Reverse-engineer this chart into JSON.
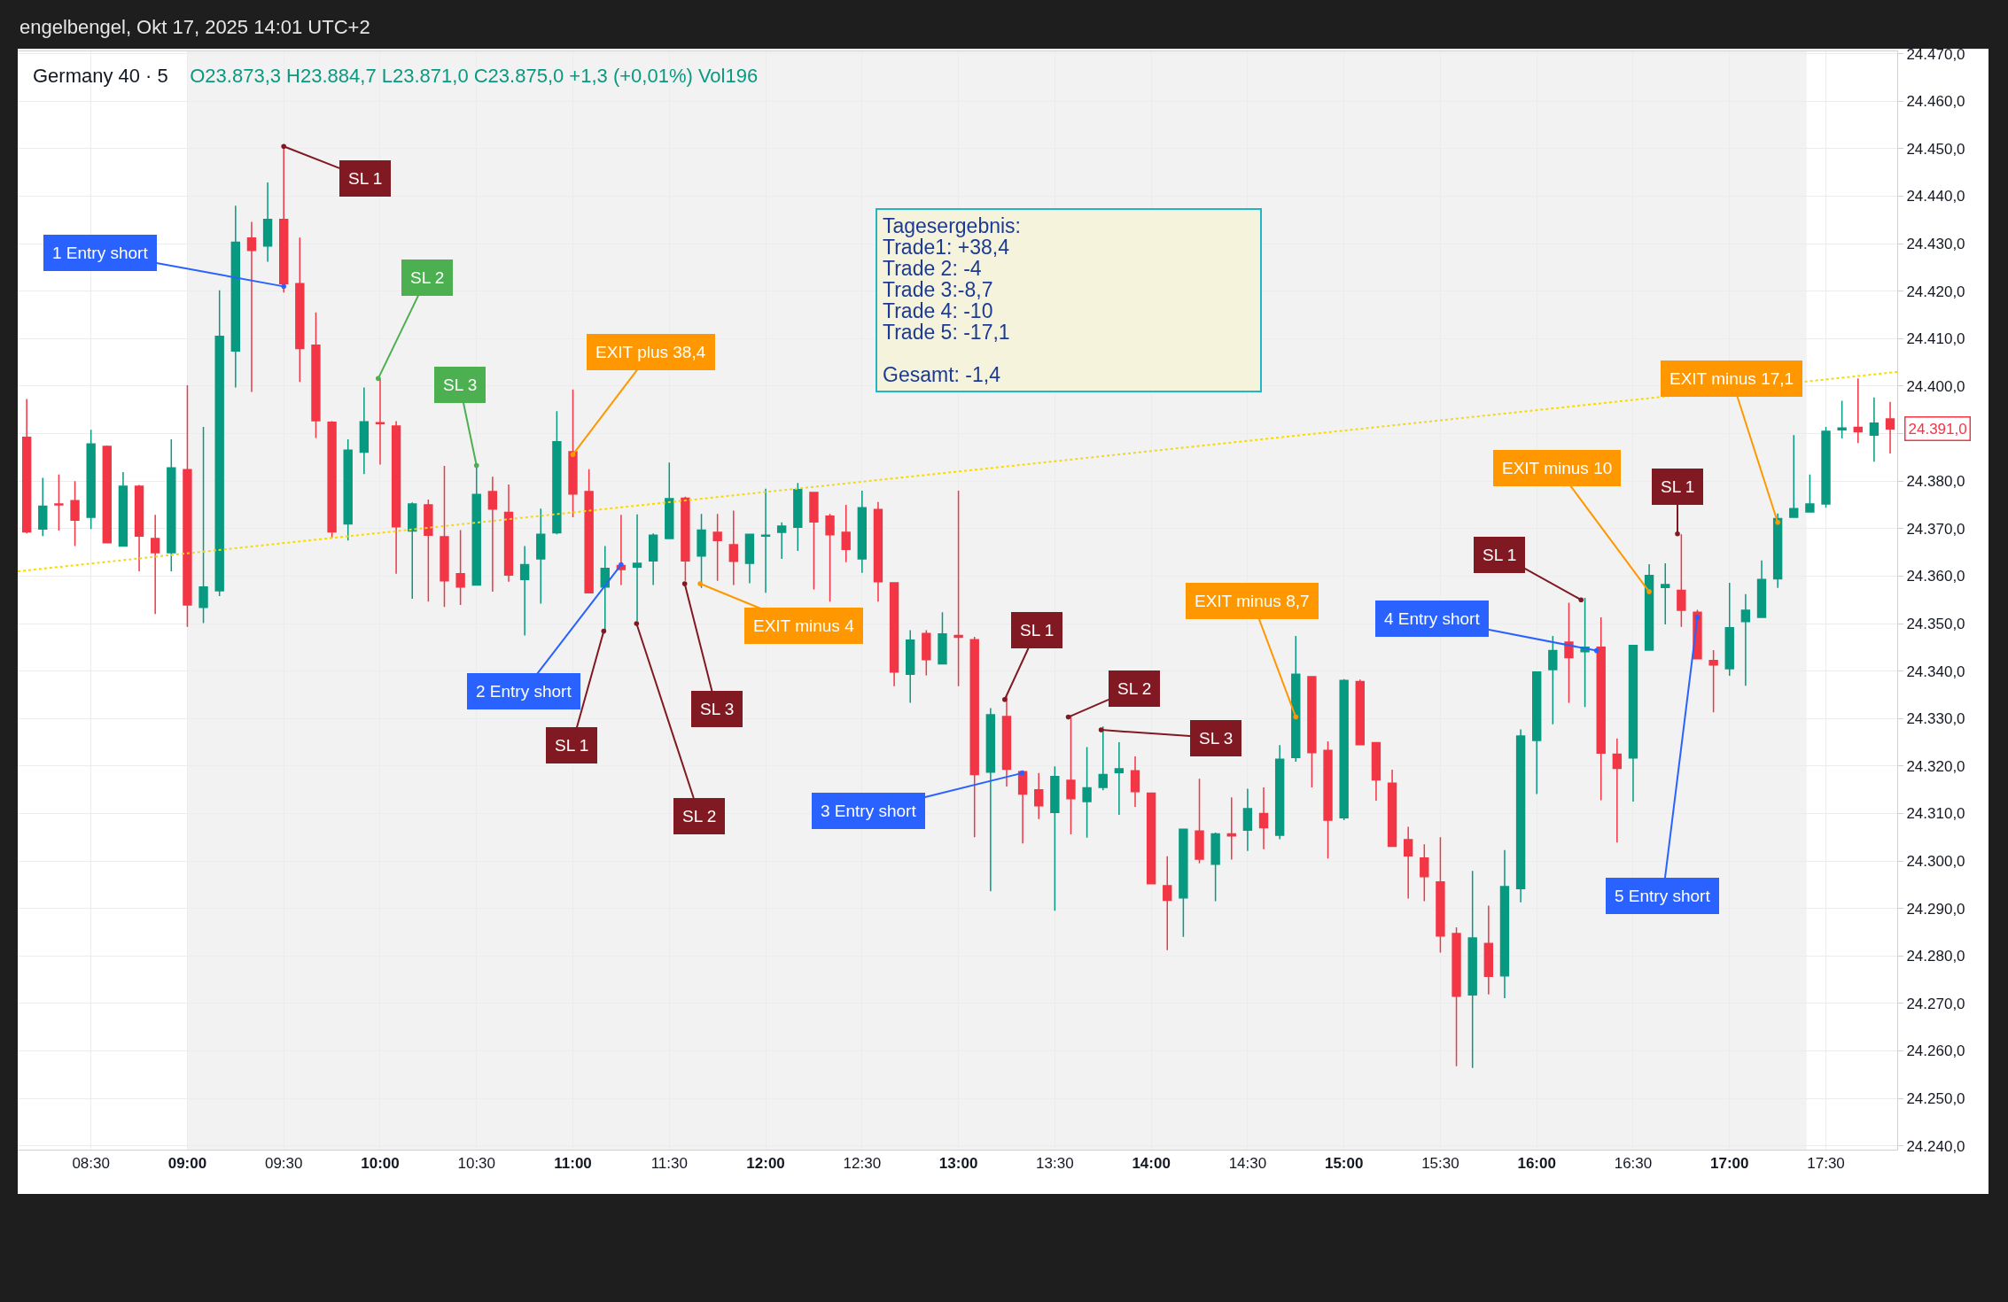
{
  "chart_data": {
    "type": "candlestick",
    "title": "Germany 40 · 5",
    "subtitle": "O23.873,3 H23.884,7 L23.871,0 C23.875,0 +1,3 (+0,01%) Vol196",
    "x": [
      8.1667,
      8.25,
      8.3333,
      8.4167,
      8.5,
      8.5833,
      8.6667,
      8.75,
      8.8333,
      8.9167,
      9,
      9.0833,
      9.1667,
      9.25,
      9.3333,
      9.4167,
      9.5,
      9.5833,
      9.6667,
      9.75,
      9.8333,
      9.9167,
      10,
      10.0833,
      10.1667,
      10.25,
      10.3333,
      10.4167,
      10.5,
      10.5833,
      10.6667,
      10.75,
      10.8333,
      10.9167,
      11,
      11.0833,
      11.1667,
      11.25,
      11.3333,
      11.4167,
      11.5,
      11.5833,
      11.6667,
      11.75,
      11.8333,
      11.9167,
      12,
      12.0833,
      12.1667,
      12.25,
      12.3333,
      12.4167,
      12.5,
      12.5833,
      12.6667,
      12.75,
      12.8333,
      12.9167,
      13,
      13.0833,
      13.1667,
      13.25,
      13.3333,
      13.4167,
      13.5,
      13.5833,
      13.6667,
      13.75,
      13.8333,
      13.9167,
      14,
      14.0833,
      14.1667,
      14.25,
      14.3333,
      14.4167,
      14.5,
      14.5833,
      14.6667,
      14.75,
      14.8333,
      14.9167,
      15,
      15.0833,
      15.1667,
      15.25,
      15.3333,
      15.4167,
      15.5,
      15.5833,
      15.6667,
      15.75,
      15.8333,
      15.9167,
      16,
      16.0833,
      16.1667,
      16.25,
      16.3333,
      16.4167,
      16.5,
      16.5833,
      16.6667,
      16.75,
      16.8333,
      16.9167,
      17,
      17.0833,
      17.1667,
      17.25,
      17.3333,
      17.4167,
      17.5,
      17.5833,
      17.6667,
      17.75,
      17.8333
    ],
    "ohlc": [
      [
        24389.2,
        24397.3,
        24369,
        24369.3
      ],
      [
        24369.9,
        24380.7,
        24368.4,
        24374.7
      ],
      [
        24375.2,
        24381.4,
        24369.6,
        24375
      ],
      [
        24375.9,
        24380,
        24366.3,
        24371.8
      ],
      [
        24372.4,
        24390.8,
        24369.9,
        24387.8
      ],
      [
        24387.3,
        24387.5,
        24367,
        24367
      ],
      [
        24366.3,
        24381.9,
        24366.3,
        24378.9
      ],
      [
        24378.9,
        24379.2,
        24361,
        24368.4
      ],
      [
        24367.9,
        24372.9,
        24352,
        24364.9
      ],
      [
        24364.9,
        24388.8,
        24361,
        24382.8
      ],
      [
        24382.4,
        24400.2,
        24349.3,
        24353.9
      ],
      [
        24353.4,
        24391.4,
        24350.1,
        24357.7
      ],
      [
        24356.9,
        24420.2,
        24355.8,
        24410.5
      ],
      [
        24407.4,
        24438,
        24399.7,
        24430.3
      ],
      [
        24431.2,
        24434.6,
        24398.8,
        24428.6
      ],
      [
        24429.5,
        24442.9,
        24426.2,
        24435.1
      ],
      [
        24435.1,
        24450.5,
        24419.7,
        24421.6
      ],
      [
        24421.6,
        24431.3,
        24400.9,
        24407.9
      ],
      [
        24408.6,
        24415.5,
        24389.1,
        24392.7
      ],
      [
        24392.4,
        24392.6,
        24368,
        24369.3
      ],
      [
        24371,
        24388.8,
        24367.5,
        24386.5
      ],
      [
        24386.1,
        24399.7,
        24381.5,
        24392.5
      ],
      [
        24392.3,
        24401.6,
        24383.5,
        24392.1
      ],
      [
        24391.6,
        24392.6,
        24360.5,
        24370.4
      ],
      [
        24369.5,
        24375.5,
        24355.2,
        24375.2
      ],
      [
        24375,
        24376.1,
        24354.6,
        24368.6
      ],
      [
        24368.3,
        24383.2,
        24353.5,
        24359
      ],
      [
        24360.5,
        24369.7,
        24353.9,
        24357.7
      ],
      [
        24358.1,
        24383.3,
        24358.1,
        24377.2
      ],
      [
        24377.8,
        24380.9,
        24356.7,
        24374.1
      ],
      [
        24373.4,
        24379.3,
        24358.8,
        24360.2
      ],
      [
        24359.3,
        24366.3,
        24347.5,
        24362.4
      ],
      [
        24363.6,
        24374.2,
        24354.2,
        24368.8
      ],
      [
        24369.1,
        24394.7,
        24368.8,
        24388.3
      ],
      [
        24386.2,
        24399.3,
        24372.4,
        24377.3
      ],
      [
        24377.8,
        24382.5,
        24356.5,
        24356.5
      ],
      [
        24357.7,
        24366.3,
        24348.6,
        24361.6
      ],
      [
        24362.2,
        24372.9,
        24358.1,
        24361.4
      ],
      [
        24361.9,
        24373,
        24350.5,
        24362.7
      ],
      [
        24363.2,
        24369,
        24358.1,
        24368.6
      ],
      [
        24367.9,
        24383.9,
        24367.9,
        24376.3
      ],
      [
        24376.4,
        24376.7,
        24359,
        24363.2
      ],
      [
        24364.2,
        24373.1,
        24357.5,
        24369.7
      ],
      [
        24369.2,
        24373.1,
        24359,
        24367.5
      ],
      [
        24366.6,
        24373.8,
        24358.1,
        24363.1
      ],
      [
        24362.7,
        24368.8,
        24358.5,
        24368.8
      ],
      [
        24368.4,
        24378.4,
        24356.5,
        24368.6
      ],
      [
        24369.2,
        24371.3,
        24363.6,
        24370.5
      ],
      [
        24370.3,
        24379.6,
        24365.3,
        24378.2
      ],
      [
        24377.6,
        24377.6,
        24357.2,
        24371.4
      ],
      [
        24372.6,
        24373.1,
        24354.6,
        24368.7
      ],
      [
        24369.2,
        24375,
        24362.9,
        24365.6
      ],
      [
        24363.6,
        24378,
        24360.7,
        24374.4
      ],
      [
        24374,
        24375.6,
        24354.6,
        24358.8
      ],
      [
        24358.6,
        24358.6,
        24336.8,
        24339.8
      ],
      [
        24339.3,
        24348.6,
        24333.3,
        24346.5
      ],
      [
        24347.9,
        24348.6,
        24339.1,
        24342.4
      ],
      [
        24341.5,
        24352.4,
        24341.5,
        24347.8
      ],
      [
        24347.5,
        24378,
        24336.8,
        24347.1
      ],
      [
        24346.6,
        24347.2,
        24305,
        24318.2
      ],
      [
        24318.7,
        24332.2,
        24293.6,
        24330.8
      ],
      [
        24330.4,
        24334.6,
        24315.7,
        24319.3
      ],
      [
        24318.8,
        24319.1,
        24303.7,
        24314.1
      ],
      [
        24315,
        24318.5,
        24308.8,
        24311.6
      ],
      [
        24310.2,
        24319.9,
        24289.5,
        24317.8
      ],
      [
        24317,
        24330.7,
        24305.6,
        24313.1
      ],
      [
        24312.5,
        24324,
        24304.9,
        24315.4
      ],
      [
        24315.5,
        24328.3,
        24314.9,
        24318.2
      ],
      [
        24318.6,
        24325,
        24309.7,
        24319.4
      ],
      [
        24319,
        24322,
        24311.4,
        24314.6
      ],
      [
        24314.3,
        24314.3,
        24295.2,
        24295.2
      ],
      [
        24294.8,
        24301,
        24281.2,
        24291.7
      ],
      [
        24292.2,
        24306.7,
        24284,
        24306.7
      ],
      [
        24306.3,
        24317.3,
        24299.5,
        24300.4
      ],
      [
        24299.3,
        24306,
        24291.5,
        24305.7
      ],
      [
        24305.7,
        24313.4,
        24300.3,
        24305.3
      ],
      [
        24306.5,
        24315.2,
        24302.1,
        24311
      ],
      [
        24310,
        24315.5,
        24302.5,
        24307
      ],
      [
        24305.4,
        24324.4,
        24304.6,
        24321.4
      ],
      [
        24321.8,
        24347.4,
        24320.9,
        24339.3
      ],
      [
        24338.8,
        24338.8,
        24315.5,
        24322.8
      ],
      [
        24323.3,
        24325.2,
        24300.5,
        24308.6
      ],
      [
        24309.1,
        24338.3,
        24308.6,
        24338
      ],
      [
        24337.8,
        24338.2,
        24324.5,
        24324.5
      ],
      [
        24324.9,
        24324.9,
        24312.7,
        24317.1
      ],
      [
        24316.4,
        24319.2,
        24303.1,
        24303.1
      ],
      [
        24304.5,
        24307.2,
        24292.1,
        24301.1
      ],
      [
        24300.6,
        24303.5,
        24291.5,
        24296.7
      ],
      [
        24295.6,
        24305,
        24280.7,
        24284.2
      ],
      [
        24284.7,
        24286,
        24256.8,
        24271.5
      ],
      [
        24271.8,
        24297.9,
        24256.4,
        24283.8
      ],
      [
        24282.6,
        24290.6,
        24271.9,
        24275.7
      ],
      [
        24275.8,
        24302.3,
        24271.1,
        24294.6
      ],
      [
        24294.2,
        24327.7,
        24291.3,
        24326.3
      ],
      [
        24325.4,
        24339.8,
        24314.1,
        24339.8
      ],
      [
        24340.3,
        24347.4,
        24328.8,
        24344.3
      ],
      [
        24346.1,
        24354.4,
        24333.3,
        24342.8
      ],
      [
        24344.1,
        24355.4,
        24332.4,
        24345
      ],
      [
        24345,
        24351.3,
        24312.8,
        24322.7
      ],
      [
        24322.5,
        24325.8,
        24303.9,
        24319.5
      ],
      [
        24321.7,
        24345.4,
        24312.5,
        24345.4
      ],
      [
        24344.4,
        24362.5,
        24344.4,
        24360.1
      ],
      [
        24357.6,
        24362.7,
        24349.8,
        24358.2
      ],
      [
        24357,
        24368.8,
        24349.3,
        24352.8
      ],
      [
        24352.4,
        24352.9,
        24342.5,
        24342.6
      ],
      [
        24342.2,
        24344.4,
        24331.3,
        24341.3
      ],
      [
        24340.5,
        24358.6,
        24339,
        24349.1
      ],
      [
        24350.4,
        24356.2,
        24336.9,
        24352.8
      ],
      [
        24351.3,
        24363.3,
        24351.3,
        24359.3
      ],
      [
        24359.4,
        24373.2,
        24357.5,
        24372.1
      ],
      [
        24372.4,
        24389.7,
        24372.4,
        24374.2
      ],
      [
        24373.5,
        24381.4,
        24373.4,
        24375.2
      ],
      [
        24375.2,
        24391.4,
        24374.4,
        24390.5
      ],
      [
        24390.8,
        24396.9,
        24389,
        24391.2
      ],
      [
        24391.3,
        24401.6,
        24388,
        24390.4
      ],
      [
        24389.7,
        24397.6,
        24384.1,
        24392.2
      ],
      [
        24393.1,
        24396.7,
        24385.8,
        24391
      ]
    ],
    "colors": [
      "#f23645",
      "#089981",
      "#f23645",
      "#f23645",
      "#089981",
      "#f23645",
      "#089981",
      "#f23645",
      "#f23645",
      "#089981",
      "#f23645",
      "#089981",
      "#089981",
      "#089981",
      "#f23645",
      "#089981",
      "#f23645",
      "#f23645",
      "#f23645",
      "#f23645",
      "#089981",
      "#089981",
      "#f23645",
      "#f23645",
      "#089981",
      "#f23645",
      "#f23645",
      "#f23645",
      "#089981",
      "#f23645",
      "#f23645",
      "#089981",
      "#089981",
      "#089981",
      "#f23645",
      "#f23645",
      "#089981",
      "#f23645",
      "#089981",
      "#089981",
      "#089981",
      "#f23645",
      "#089981",
      "#f23645",
      "#f23645",
      "#089981",
      "#089981",
      "#089981",
      "#089981",
      "#f23645",
      "#f23645",
      "#f23645",
      "#089981",
      "#f23645",
      "#f23645",
      "#089981",
      "#f23645",
      "#089981",
      "#f23645",
      "#f23645",
      "#089981",
      "#f23645",
      "#f23645",
      "#f23645",
      "#089981",
      "#f23645",
      "#089981",
      "#089981",
      "#089981",
      "#f23645",
      "#f23645",
      "#f23645",
      "#089981",
      "#f23645",
      "#089981",
      "#f23645",
      "#089981",
      "#f23645",
      "#089981",
      "#089981",
      "#f23645",
      "#f23645",
      "#089981",
      "#f23645",
      "#f23645",
      "#f23645",
      "#f23645",
      "#f23645",
      "#f23645",
      "#f23645",
      "#089981",
      "#f23645",
      "#089981",
      "#089981",
      "#089981",
      "#089981",
      "#f23645",
      "#089981",
      "#f23645",
      "#f23645",
      "#089981",
      "#089981",
      "#089981",
      "#f23645",
      "#f23645",
      "#f23645",
      "#089981",
      "#089981",
      "#089981",
      "#089981",
      "#089981",
      "#089981",
      "#089981",
      "#089981",
      "#f23645",
      "#089981",
      "#f23645"
    ],
    "series": [
      {
        "type": "line",
        "x": [
          8.12,
          17.87
        ],
        "values": [
          24361,
          24403
        ],
        "color": "#f5d90a",
        "line_style": "dotted"
      }
    ],
    "bands": [
      {
        "axis": "x",
        "from": 9,
        "to": 17.4,
        "color": "#f2f2f2"
      }
    ],
    "xlim": [
      8.12,
      17.87
    ],
    "xticks": [
      {
        "value": 8.5,
        "label": "08:30"
      },
      {
        "value": 9,
        "label": "09:00"
      },
      {
        "value": 9.5,
        "label": "09:30"
      },
      {
        "value": 10,
        "label": "10:00"
      },
      {
        "value": 10.5,
        "label": "10:30"
      },
      {
        "value": 11,
        "label": "11:00"
      },
      {
        "value": 11.5,
        "label": "11:30"
      },
      {
        "value": 12,
        "label": "12:00"
      },
      {
        "value": 12.5,
        "label": "12:30"
      },
      {
        "value": 13,
        "label": "13:00"
      },
      {
        "value": 13.5,
        "label": "13:30"
      },
      {
        "value": 14,
        "label": "14:00"
      },
      {
        "value": 14.5,
        "label": "14:30"
      },
      {
        "value": 15,
        "label": "15:00"
      },
      {
        "value": 15.5,
        "label": "15:30"
      },
      {
        "value": 16,
        "label": "16:00"
      },
      {
        "value": 16.5,
        "label": "16:30"
      },
      {
        "value": 17,
        "label": "17:00"
      },
      {
        "value": 17.5,
        "label": "17:30"
      }
    ],
    "ylim": [
      24239.2,
      24470.5
    ],
    "yticks": [
      {
        "value": 24240,
        "label": "24.240,0"
      },
      {
        "value": 24250,
        "label": "24.250,0"
      },
      {
        "value": 24260,
        "label": "24.260,0"
      },
      {
        "value": 24270,
        "label": "24.270,0"
      },
      {
        "value": 24280,
        "label": "24.280,0"
      },
      {
        "value": 24290,
        "label": "24.290,0"
      },
      {
        "value": 24300,
        "label": "24.300,0"
      },
      {
        "value": 24310,
        "label": "24.310,0"
      },
      {
        "value": 24320,
        "label": "24.320,0"
      },
      {
        "value": 24330,
        "label": "24.330,0"
      },
      {
        "value": 24340,
        "label": "24.340,0"
      },
      {
        "value": 24350,
        "label": "24.350,0"
      },
      {
        "value": 24360,
        "label": "24.360,0"
      },
      {
        "value": 24370,
        "label": "24.370,0"
      },
      {
        "value": 24380,
        "label": "24.380,0"
      },
      {
        "value": 24390,
        "label": null
      },
      {
        "value": 24400,
        "label": "24.400,0"
      },
      {
        "value": 24410,
        "label": "24.410,0"
      },
      {
        "value": 24420,
        "label": "24.420,0"
      },
      {
        "value": 24430,
        "label": "24.430,0"
      },
      {
        "value": 24440,
        "label": "24.440,0"
      },
      {
        "value": 24450,
        "label": "24.450,0"
      },
      {
        "value": 24460,
        "label": "24.460,0"
      },
      {
        "value": 24470,
        "label": "24.470,0"
      }
    ],
    "grid": true,
    "annotations": [
      "engelbengel, Okt 17, 2025 14:01 UTC+2",
      "Tagesergebnis:\nTrade1: +38,4\nTrade 2: -4\nTrade 3:-8,7\nTrade 4: -10\nTrade 5: -17,1\n\nGesamt: -1,4",
      "24.391,0",
      {
        "text": "1 Entry short",
        "x": 9.5,
        "y": 24421
      },
      {
        "text": "SL 1",
        "x": 9.5,
        "y": 24450.5
      },
      {
        "text": "SL 2",
        "x": 9.99,
        "y": 24401.6
      },
      {
        "text": "SL 3",
        "x": 10.5,
        "y": 24383.3
      },
      {
        "text": "EXIT plus 38,4",
        "x": 11,
        "y": 24385.6
      },
      {
        "text": "2 Entry short",
        "x": 11.25,
        "y": 24362.4
      },
      {
        "text": "SL 1",
        "x": 11.16,
        "y": 24348.4
      },
      {
        "text": "SL 2",
        "x": 11.33,
        "y": 24350
      },
      {
        "text": "SL 3",
        "x": 11.58,
        "y": 24358.4
      },
      {
        "text": "EXIT minus 4",
        "x": 11.66,
        "y": 24358.4
      },
      {
        "text": "SL 1",
        "x": 13.24,
        "y": 24334
      },
      {
        "text": "3 Entry short",
        "x": 13.33,
        "y": 24318.5
      },
      {
        "text": "SL 2",
        "x": 13.57,
        "y": 24330.3
      },
      {
        "text": "SL 3",
        "x": 13.74,
        "y": 24327.6
      },
      {
        "text": "EXIT minus 8,7",
        "x": 14.75,
        "y": 24330.3
      },
      {
        "text": "SL 1",
        "x": 16.23,
        "y": 24355
      },
      {
        "text": "4 Entry short",
        "x": 16.31,
        "y": 24344.3
      },
      {
        "text": "EXIT minus 10",
        "x": 16.5833,
        "y": 24356.7
      },
      {
        "text": "SL 1",
        "x": 16.73,
        "y": 24368.9
      },
      {
        "text": "5 Entry short",
        "x": 16.8333,
        "y": 24351.3
      },
      {
        "text": "EXIT minus 17,1",
        "x": 17.25,
        "y": 24371.3
      }
    ]
  }
}
